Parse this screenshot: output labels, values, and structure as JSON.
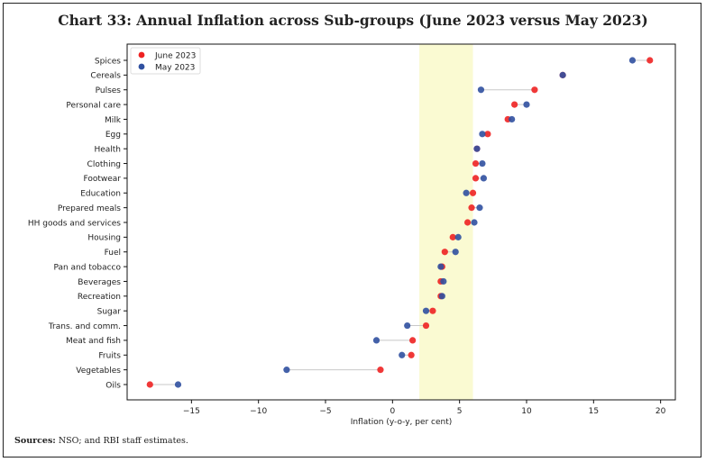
{
  "chart_data": {
    "type": "dumbbell",
    "title": "Chart 33: Annual Inflation across Sub-groups (June 2023 versus May 2023)",
    "xlabel": "Inflation (y-o-y, per cent)",
    "ylabel": "",
    "xlim": [
      -19.8,
      21.1
    ],
    "xticks": [
      -15,
      -10,
      -5,
      0,
      5,
      10,
      15,
      20
    ],
    "xtick_labels": [
      "−15",
      "−10",
      "−5",
      "0",
      "5",
      "10",
      "15",
      "20"
    ],
    "shaded_band": [
      2,
      6
    ],
    "shaded_color": "#fafad2",
    "grid": false,
    "legend_position": "top-left",
    "categories": [
      "Spices",
      "Cereals",
      "Pulses",
      "Personal care",
      "Milk",
      "Egg",
      "Health",
      "Clothing",
      "Footwear",
      "Education",
      "Prepared meals",
      "HH goods and services",
      "Housing",
      "Fuel",
      "Pan and tobacco",
      "Beverages",
      "Recreation",
      "Sugar",
      "Trans. and comm.",
      "Meat and fish",
      "Fruits",
      "Vegetables",
      "Oils"
    ],
    "series": [
      {
        "name": "June 2023",
        "color": "#ee2222",
        "values": [
          19.2,
          12.7,
          10.6,
          9.1,
          8.6,
          7.1,
          6.3,
          6.2,
          6.2,
          6.0,
          5.9,
          5.6,
          4.5,
          3.9,
          3.7,
          3.6,
          3.6,
          3.0,
          2.5,
          1.5,
          1.4,
          -0.9,
          -18.1
        ]
      },
      {
        "name": "May 2023",
        "color": "#3050a0",
        "values": [
          17.9,
          12.7,
          6.6,
          10.0,
          8.9,
          6.7,
          6.3,
          6.7,
          6.8,
          5.5,
          6.5,
          6.1,
          4.9,
          4.7,
          3.6,
          3.8,
          3.7,
          2.5,
          1.1,
          -1.2,
          0.7,
          -7.9,
          -16.0
        ]
      }
    ]
  },
  "footer": {
    "sources_label": "Sources:",
    "sources_text": " NSO; and RBI staff estimates."
  }
}
